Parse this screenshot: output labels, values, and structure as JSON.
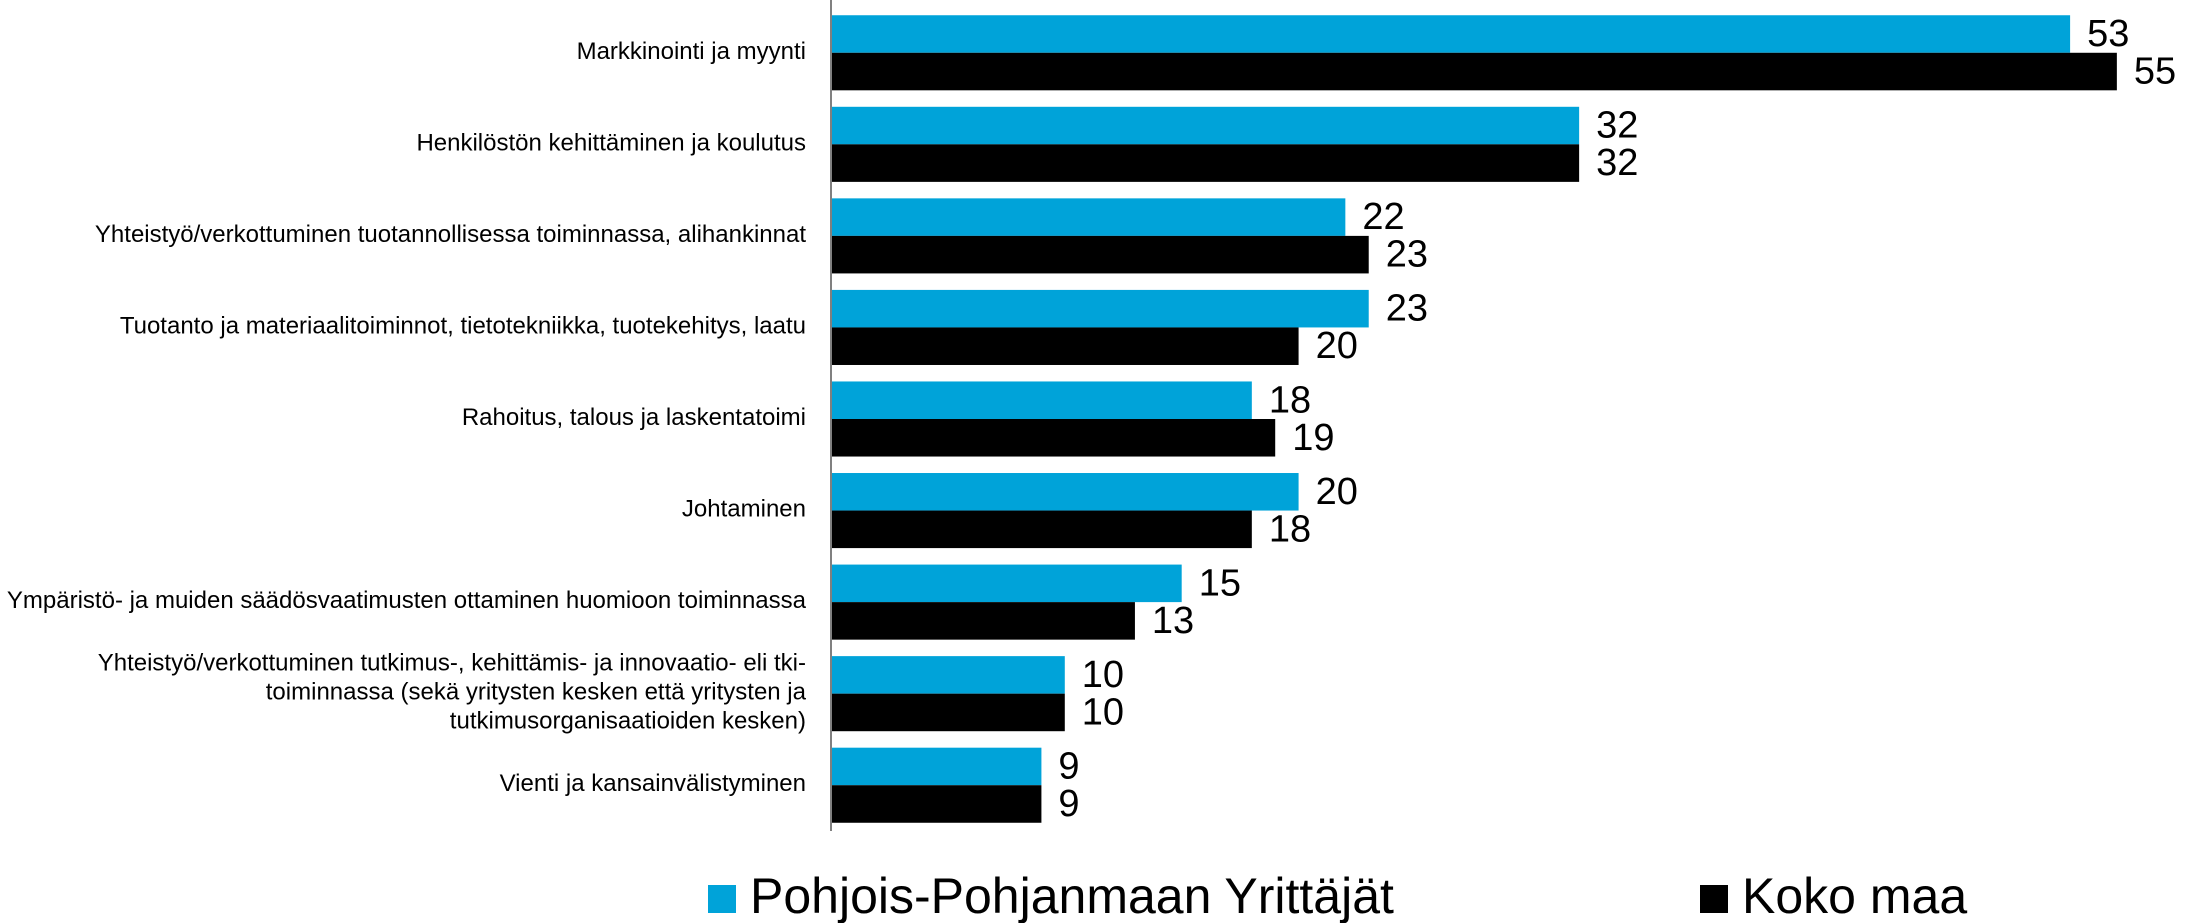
{
  "chart_data": {
    "type": "hbar",
    "categories": [
      "Markkinointi ja myynti",
      "Henkilöstön kehittäminen ja koulutus",
      "Yhteistyö/verkottuminen tuotannollisessa toiminnassa, alihankinnat",
      "Tuotanto ja materiaalitoiminnot, tietotekniikka, tuotekehitys, laatu",
      "Rahoitus, talous ja laskentatoimi",
      "Johtaminen",
      "Ympäristö- ja muiden säädösvaatimusten ottaminen huomioon toiminnassa",
      "Yhteistyö/verkottuminen tutkimus-, kehittämis- ja innovaatio- eli tki-toiminnassa (sekä yritysten kesken että yritysten ja tutkimusorganisaatioiden kesken)",
      "Vienti ja kansainvälistyminen"
    ],
    "series": [
      {
        "name": "Pohjois-Pohjanmaan Yrittäjät",
        "color": "#00a3d9",
        "values": [
          53,
          32,
          22,
          23,
          18,
          20,
          15,
          10,
          9
        ]
      },
      {
        "name": "Koko maa",
        "color": "#000000",
        "values": [
          55,
          32,
          23,
          20,
          19,
          18,
          13,
          10,
          9
        ]
      }
    ],
    "xlim": [
      0,
      58
    ],
    "legend": "bottom"
  }
}
